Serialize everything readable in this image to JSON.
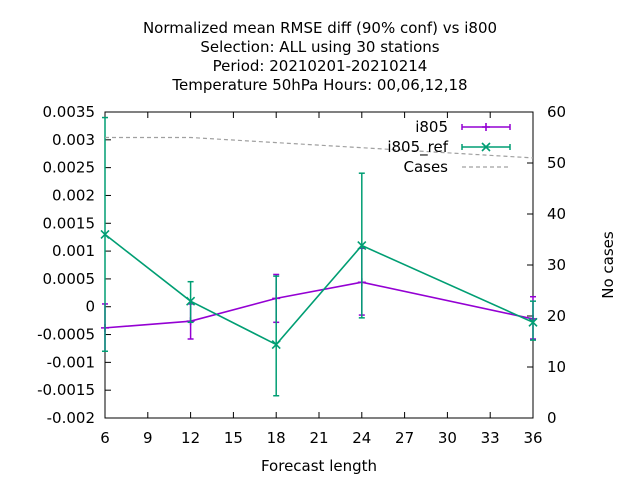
{
  "chart_data": {
    "type": "line",
    "title_lines": [
      "Normalized mean RMSE diff (90% conf) vs i800",
      "Selection: ALL using    30 stations",
      "Period: 20210201-20210214",
      "Temperature 50hPa   Hours:  00,06,12,18"
    ],
    "xlabel": "Forecast length",
    "ylabel": "",
    "y2label": "No cases",
    "xlim": [
      6,
      36
    ],
    "ylim": [
      -0.002,
      0.0035
    ],
    "y2lim": [
      0,
      60
    ],
    "x_ticks": [
      6,
      9,
      12,
      15,
      18,
      21,
      24,
      27,
      30,
      33,
      36
    ],
    "y_ticks": [
      -0.002,
      -0.0015,
      -0.001,
      -0.0005,
      0,
      0.0005,
      0.001,
      0.0015,
      0.002,
      0.0025,
      0.003,
      0.0035
    ],
    "y_tick_labels": [
      "-0.002",
      "-0.0015",
      "-0.001",
      "-0.0005",
      "0",
      "0.0005",
      "0.001",
      "0.0015",
      "0.002",
      "0.0025",
      "0.003",
      "0.0035"
    ],
    "y2_ticks": [
      0,
      10,
      20,
      30,
      40,
      50,
      60
    ],
    "legend_position": "top-right",
    "grid": false,
    "series": [
      {
        "name": "i805",
        "color": "#9400d3",
        "marker": "plus",
        "axis": "y",
        "x": [
          6,
          12,
          18,
          24,
          36
        ],
        "y": [
          -0.00038,
          -0.00026,
          0.00015,
          0.00044,
          -0.00022
        ],
        "err_low": [
          -0.0008,
          -0.00058,
          -0.00028,
          -0.00015,
          -0.00058
        ],
        "err_high": [
          5e-05,
          5e-05,
          0.00058,
          0.00105,
          0.00018
        ]
      },
      {
        "name": "i805_ref",
        "color": "#009e73",
        "marker": "x",
        "axis": "y",
        "x": [
          6,
          12,
          18,
          24,
          36
        ],
        "y": [
          0.0013,
          0.0001,
          -0.00068,
          0.0011,
          -0.00028
        ],
        "err_low": [
          -0.0008,
          -0.00028,
          -0.0016,
          -0.0002,
          -0.0006
        ],
        "err_high": [
          0.0034,
          0.00045,
          0.00055,
          0.0024,
          0.0001
        ]
      },
      {
        "name": "Cases",
        "color": "#a0a0a0",
        "dashed": true,
        "axis": "y2",
        "x": [
          6,
          12,
          18,
          24,
          36
        ],
        "y": [
          55,
          55,
          54,
          53,
          51
        ]
      }
    ]
  }
}
